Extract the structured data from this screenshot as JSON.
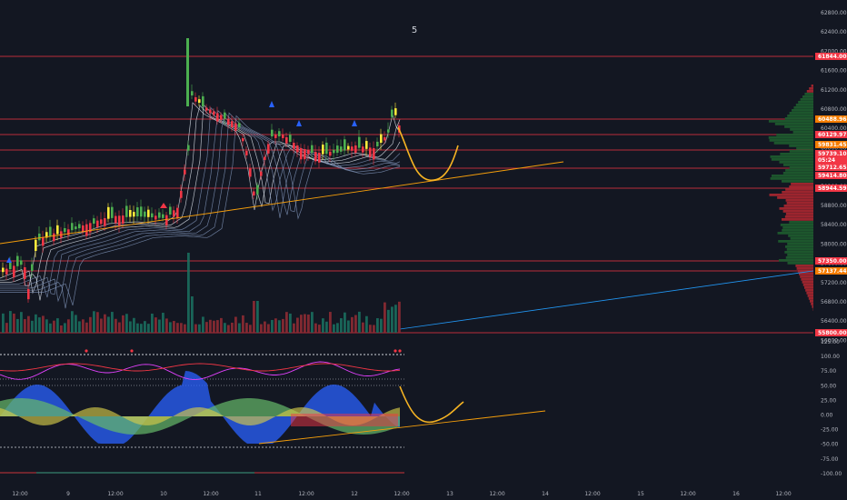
{
  "header": {
    "page_number": "5"
  },
  "price_axis": {
    "ticks": [
      "62800.00",
      "62400.00",
      "62000.00",
      "61600.00",
      "61200.00",
      "60800.00",
      "60400.00",
      "60000.00",
      "59600.00",
      "59200.00",
      "58800.00",
      "58400.00",
      "58000.00",
      "57600.00",
      "57200.00",
      "56800.00",
      "56400.00",
      "56000.00"
    ],
    "tags": [
      {
        "label": "61844.00",
        "color": "#f23645"
      },
      {
        "label": "60488.96",
        "color": "#f57c00"
      },
      {
        "label": "60129.97",
        "color": "#f23645"
      },
      {
        "label": "59831.45",
        "color": "#f57c00"
      },
      {
        "label": "59739.10",
        "color": "#f23645"
      },
      {
        "label": "05:24",
        "color": "#f23645"
      },
      {
        "label": "59712.65",
        "color": "#f23645"
      },
      {
        "label": "59414.80",
        "color": "#f23645"
      },
      {
        "label": "58944.59",
        "color": "#f23645"
      },
      {
        "label": "57350.00",
        "color": "#f23645"
      },
      {
        "label": "57137.44",
        "color": "#f57c00"
      },
      {
        "label": "55800.00",
        "color": "#f23645"
      }
    ]
  },
  "oscillator_axis": {
    "ticks": [
      "125.00",
      "100.00",
      "75.00",
      "50.00",
      "25.00",
      "0.00",
      "-25.00",
      "-50.00",
      "-75.00",
      "-100.00"
    ]
  },
  "time_axis": {
    "ticks": [
      "12:00",
      "9",
      "12:00",
      "10",
      "12:00",
      "11",
      "12:00",
      "12",
      "12:00",
      "13",
      "12:00",
      "14",
      "12:00",
      "15",
      "12:00",
      "16",
      "12:00"
    ]
  },
  "colors": {
    "background": "#131722",
    "up_candle": "#22ab94",
    "down_candle": "#f23645",
    "bright_up": "#4caf50",
    "projection": "#f5b323",
    "trendline": "#f59e0b",
    "ribbon": "#b0bec5",
    "blue_wave": "#2962ff",
    "green_wave": "#66bb6a",
    "yellow_wave": "#d4c94a",
    "level_line": "#f23645",
    "long_trend": "#2196f3"
  }
}
